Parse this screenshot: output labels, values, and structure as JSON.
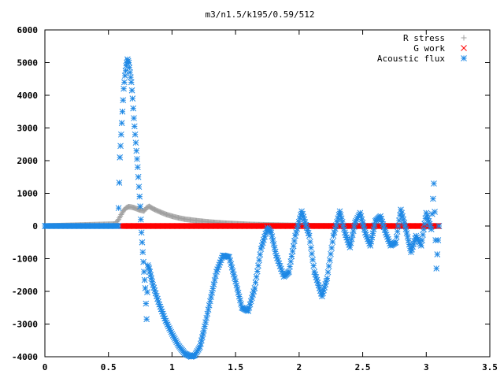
{
  "chart_data": {
    "type": "scatter",
    "title": "m3/n1.5/k195/0.59/512",
    "xlabel": "",
    "ylabel": "",
    "xlim": [
      0,
      3.5
    ],
    "ylim": [
      -4000,
      6000
    ],
    "x_ticks": [
      "0",
      "0.5",
      "1",
      "1.5",
      "2",
      "2.5",
      "3",
      "3.5"
    ],
    "x_tick_values": [
      0,
      0.5,
      1,
      1.5,
      2,
      2.5,
      3,
      3.5
    ],
    "y_ticks": [
      "-4000",
      "-3000",
      "-2000",
      "-1000",
      "0",
      "1000",
      "2000",
      "3000",
      "4000",
      "5000",
      "6000"
    ],
    "y_tick_values": [
      -4000,
      -3000,
      -2000,
      -1000,
      0,
      1000,
      2000,
      3000,
      4000,
      5000,
      6000
    ],
    "grid": false,
    "legend_position": "top-right",
    "series": [
      {
        "name": "R stress",
        "marker": "plus",
        "color": "#a0a0a0",
        "x": [
          0.0,
          0.55,
          0.58,
          0.6,
          0.62,
          0.64,
          0.66,
          0.68,
          0.7,
          0.72,
          0.74,
          0.76,
          0.78,
          0.8,
          0.82,
          0.85,
          0.9,
          0.95,
          1.0,
          1.05,
          1.1,
          1.2,
          1.3,
          1.4,
          1.5,
          1.6,
          1.8,
          2.0,
          2.2,
          2.5,
          2.8,
          3.1
        ],
        "y": [
          0,
          60,
          200,
          350,
          480,
          560,
          590,
          580,
          560,
          530,
          500,
          480,
          460,
          560,
          600,
          530,
          440,
          360,
          300,
          250,
          210,
          160,
          120,
          90,
          70,
          50,
          30,
          15,
          8,
          3,
          1,
          0
        ]
      },
      {
        "name": "G work",
        "marker": "cross",
        "color": "#ff0000",
        "x": [
          0.6,
          0.8,
          1.0,
          1.2,
          1.4,
          1.6,
          1.8,
          2.0,
          2.2,
          2.4,
          2.6,
          2.8,
          3.0,
          3.1
        ],
        "y": [
          0,
          0,
          0,
          0,
          0,
          0,
          0,
          0,
          0,
          0,
          0,
          0,
          0,
          0
        ]
      },
      {
        "name": "Acoustic flux",
        "marker": "star",
        "color": "#1e88e5",
        "x": [
          0.0,
          0.58,
          0.59,
          0.6,
          0.61,
          0.62,
          0.63,
          0.64,
          0.65,
          0.66,
          0.67,
          0.68,
          0.69,
          0.7,
          0.71,
          0.72,
          0.73,
          0.74,
          0.75,
          0.76,
          0.77,
          0.78,
          0.79,
          0.8,
          0.81,
          0.82,
          0.85,
          0.9,
          0.95,
          1.0,
          1.05,
          1.1,
          1.15,
          1.18,
          1.22,
          1.25,
          1.3,
          1.35,
          1.4,
          1.45,
          1.5,
          1.55,
          1.6,
          1.65,
          1.7,
          1.75,
          1.78,
          1.82,
          1.88,
          1.92,
          1.97,
          2.02,
          2.08,
          2.12,
          2.18,
          2.22,
          2.27,
          2.32,
          2.36,
          2.4,
          2.44,
          2.48,
          2.52,
          2.56,
          2.6,
          2.64,
          2.68,
          2.72,
          2.76,
          2.8,
          2.84,
          2.88,
          2.92,
          2.96,
          3.0,
          3.04,
          3.06,
          3.08,
          3.1
        ],
        "y": [
          0,
          550,
          2100,
          2800,
          3500,
          4200,
          4600,
          4900,
          5100,
          5000,
          4700,
          4400,
          3900,
          3300,
          2800,
          2300,
          1800,
          1200,
          600,
          -200,
          -800,
          -1400,
          -1900,
          -2850,
          -1200,
          -1300,
          -1800,
          -2400,
          -2900,
          -3300,
          -3650,
          -3900,
          -4000,
          -3950,
          -3700,
          -3200,
          -2300,
          -1400,
          -900,
          -950,
          -1700,
          -2500,
          -2600,
          -1900,
          -700,
          -50,
          -200,
          -900,
          -1550,
          -1400,
          -300,
          450,
          -300,
          -1400,
          -2150,
          -1600,
          -300,
          450,
          -200,
          -650,
          100,
          400,
          -200,
          -600,
          150,
          300,
          -200,
          -600,
          -500,
          500,
          -100,
          -800,
          -300,
          -600,
          400,
          -100,
          1300,
          -1300,
          0
        ]
      }
    ]
  }
}
